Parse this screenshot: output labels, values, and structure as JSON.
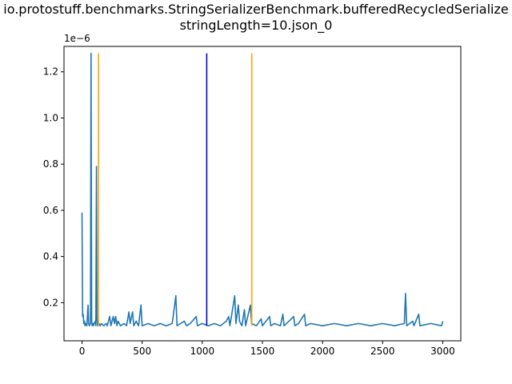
{
  "chart_data": {
    "type": "line",
    "title_line1": "io.protostuff.benchmarks.StringSerializerBenchmark.bufferedRecycledSerialize",
    "title_line2": "stringLength=10.json_0",
    "xlabel": "",
    "ylabel": "",
    "y_offset_text": "1e−6",
    "xlim": [
      -150,
      3150
    ],
    "ylim": [
      0.035,
      1.31
    ],
    "x_ticks": [
      0,
      500,
      1000,
      1500,
      2000,
      2500,
      3000
    ],
    "x_tick_labels": [
      "0",
      "500",
      "1000",
      "1500",
      "2000",
      "2500",
      "3000"
    ],
    "y_ticks": [
      0.2,
      0.4,
      0.6,
      0.8,
      1.0,
      1.2
    ],
    "y_tick_labels": [
      "0.2",
      "0.4",
      "0.6",
      "0.8",
      "1.0",
      "1.2"
    ],
    "grid": false,
    "series": [
      {
        "color": "#1f77b4",
        "points": [
          [
            0,
            0.59
          ],
          [
            5,
            0.14
          ],
          [
            10,
            0.15
          ],
          [
            15,
            0.11
          ],
          [
            20,
            0.12
          ],
          [
            25,
            0.1
          ],
          [
            30,
            0.11
          ],
          [
            40,
            0.1
          ],
          [
            50,
            0.19
          ],
          [
            55,
            0.11
          ],
          [
            60,
            0.1
          ],
          [
            70,
            0.11
          ],
          [
            75,
            1.28
          ],
          [
            80,
            0.12
          ],
          [
            85,
            0.1
          ],
          [
            90,
            0.11
          ],
          [
            95,
            0.1
          ],
          [
            100,
            0.11
          ],
          [
            110,
            0.12
          ],
          [
            115,
            0.1
          ],
          [
            120,
            0.79
          ],
          [
            125,
            0.13
          ],
          [
            130,
            0.1
          ],
          [
            140,
            0.11
          ],
          [
            150,
            0.1
          ],
          [
            160,
            0.11
          ],
          [
            180,
            0.1
          ],
          [
            200,
            0.11
          ],
          [
            210,
            0.1
          ],
          [
            230,
            0.14
          ],
          [
            240,
            0.1
          ],
          [
            260,
            0.14
          ],
          [
            270,
            0.11
          ],
          [
            280,
            0.14
          ],
          [
            290,
            0.1
          ],
          [
            300,
            0.12
          ],
          [
            320,
            0.1
          ],
          [
            350,
            0.11
          ],
          [
            370,
            0.1
          ],
          [
            390,
            0.16
          ],
          [
            400,
            0.11
          ],
          [
            420,
            0.16
          ],
          [
            430,
            0.1
          ],
          [
            450,
            0.12
          ],
          [
            470,
            0.1
          ],
          [
            490,
            0.19
          ],
          [
            500,
            0.1
          ],
          [
            550,
            0.11
          ],
          [
            600,
            0.1
          ],
          [
            650,
            0.11
          ],
          [
            700,
            0.1
          ],
          [
            750,
            0.11
          ],
          [
            780,
            0.23
          ],
          [
            790,
            0.1
          ],
          [
            850,
            0.12
          ],
          [
            870,
            0.1
          ],
          [
            900,
            0.11
          ],
          [
            950,
            0.14
          ],
          [
            960,
            0.1
          ],
          [
            1000,
            0.11
          ],
          [
            1050,
            0.1
          ],
          [
            1100,
            0.11
          ],
          [
            1150,
            0.1
          ],
          [
            1200,
            0.12
          ],
          [
            1220,
            0.14
          ],
          [
            1230,
            0.1
          ],
          [
            1270,
            0.23
          ],
          [
            1280,
            0.11
          ],
          [
            1300,
            0.19
          ],
          [
            1310,
            0.12
          ],
          [
            1330,
            0.1
          ],
          [
            1350,
            0.17
          ],
          [
            1360,
            0.1
          ],
          [
            1400,
            0.19
          ],
          [
            1410,
            0.11
          ],
          [
            1450,
            0.1
          ],
          [
            1490,
            0.13
          ],
          [
            1500,
            0.1
          ],
          [
            1560,
            0.14
          ],
          [
            1570,
            0.1
          ],
          [
            1600,
            0.11
          ],
          [
            1650,
            0.1
          ],
          [
            1670,
            0.15
          ],
          [
            1680,
            0.1
          ],
          [
            1700,
            0.11
          ],
          [
            1760,
            0.14
          ],
          [
            1770,
            0.1
          ],
          [
            1800,
            0.11
          ],
          [
            1850,
            0.15
          ],
          [
            1860,
            0.1
          ],
          [
            1900,
            0.11
          ],
          [
            2000,
            0.1
          ],
          [
            2100,
            0.11
          ],
          [
            2200,
            0.1
          ],
          [
            2300,
            0.11
          ],
          [
            2400,
            0.1
          ],
          [
            2500,
            0.11
          ],
          [
            2600,
            0.1
          ],
          [
            2680,
            0.11
          ],
          [
            2690,
            0.24
          ],
          [
            2700,
            0.1
          ],
          [
            2750,
            0.12
          ],
          [
            2760,
            0.1
          ],
          [
            2800,
            0.15
          ],
          [
            2810,
            0.1
          ],
          [
            2900,
            0.11
          ],
          [
            2990,
            0.1
          ],
          [
            3000,
            0.12
          ]
        ]
      }
    ],
    "vlines": [
      {
        "x": 137,
        "color": "#ffa500",
        "ymin": 0.1,
        "ymax": 1.28
      },
      {
        "x": 1037,
        "color": "#0000cd",
        "ymin": 0.1,
        "ymax": 1.28
      },
      {
        "x": 1412,
        "color": "#ffa500",
        "ymin": 0.1,
        "ymax": 1.28
      }
    ]
  }
}
